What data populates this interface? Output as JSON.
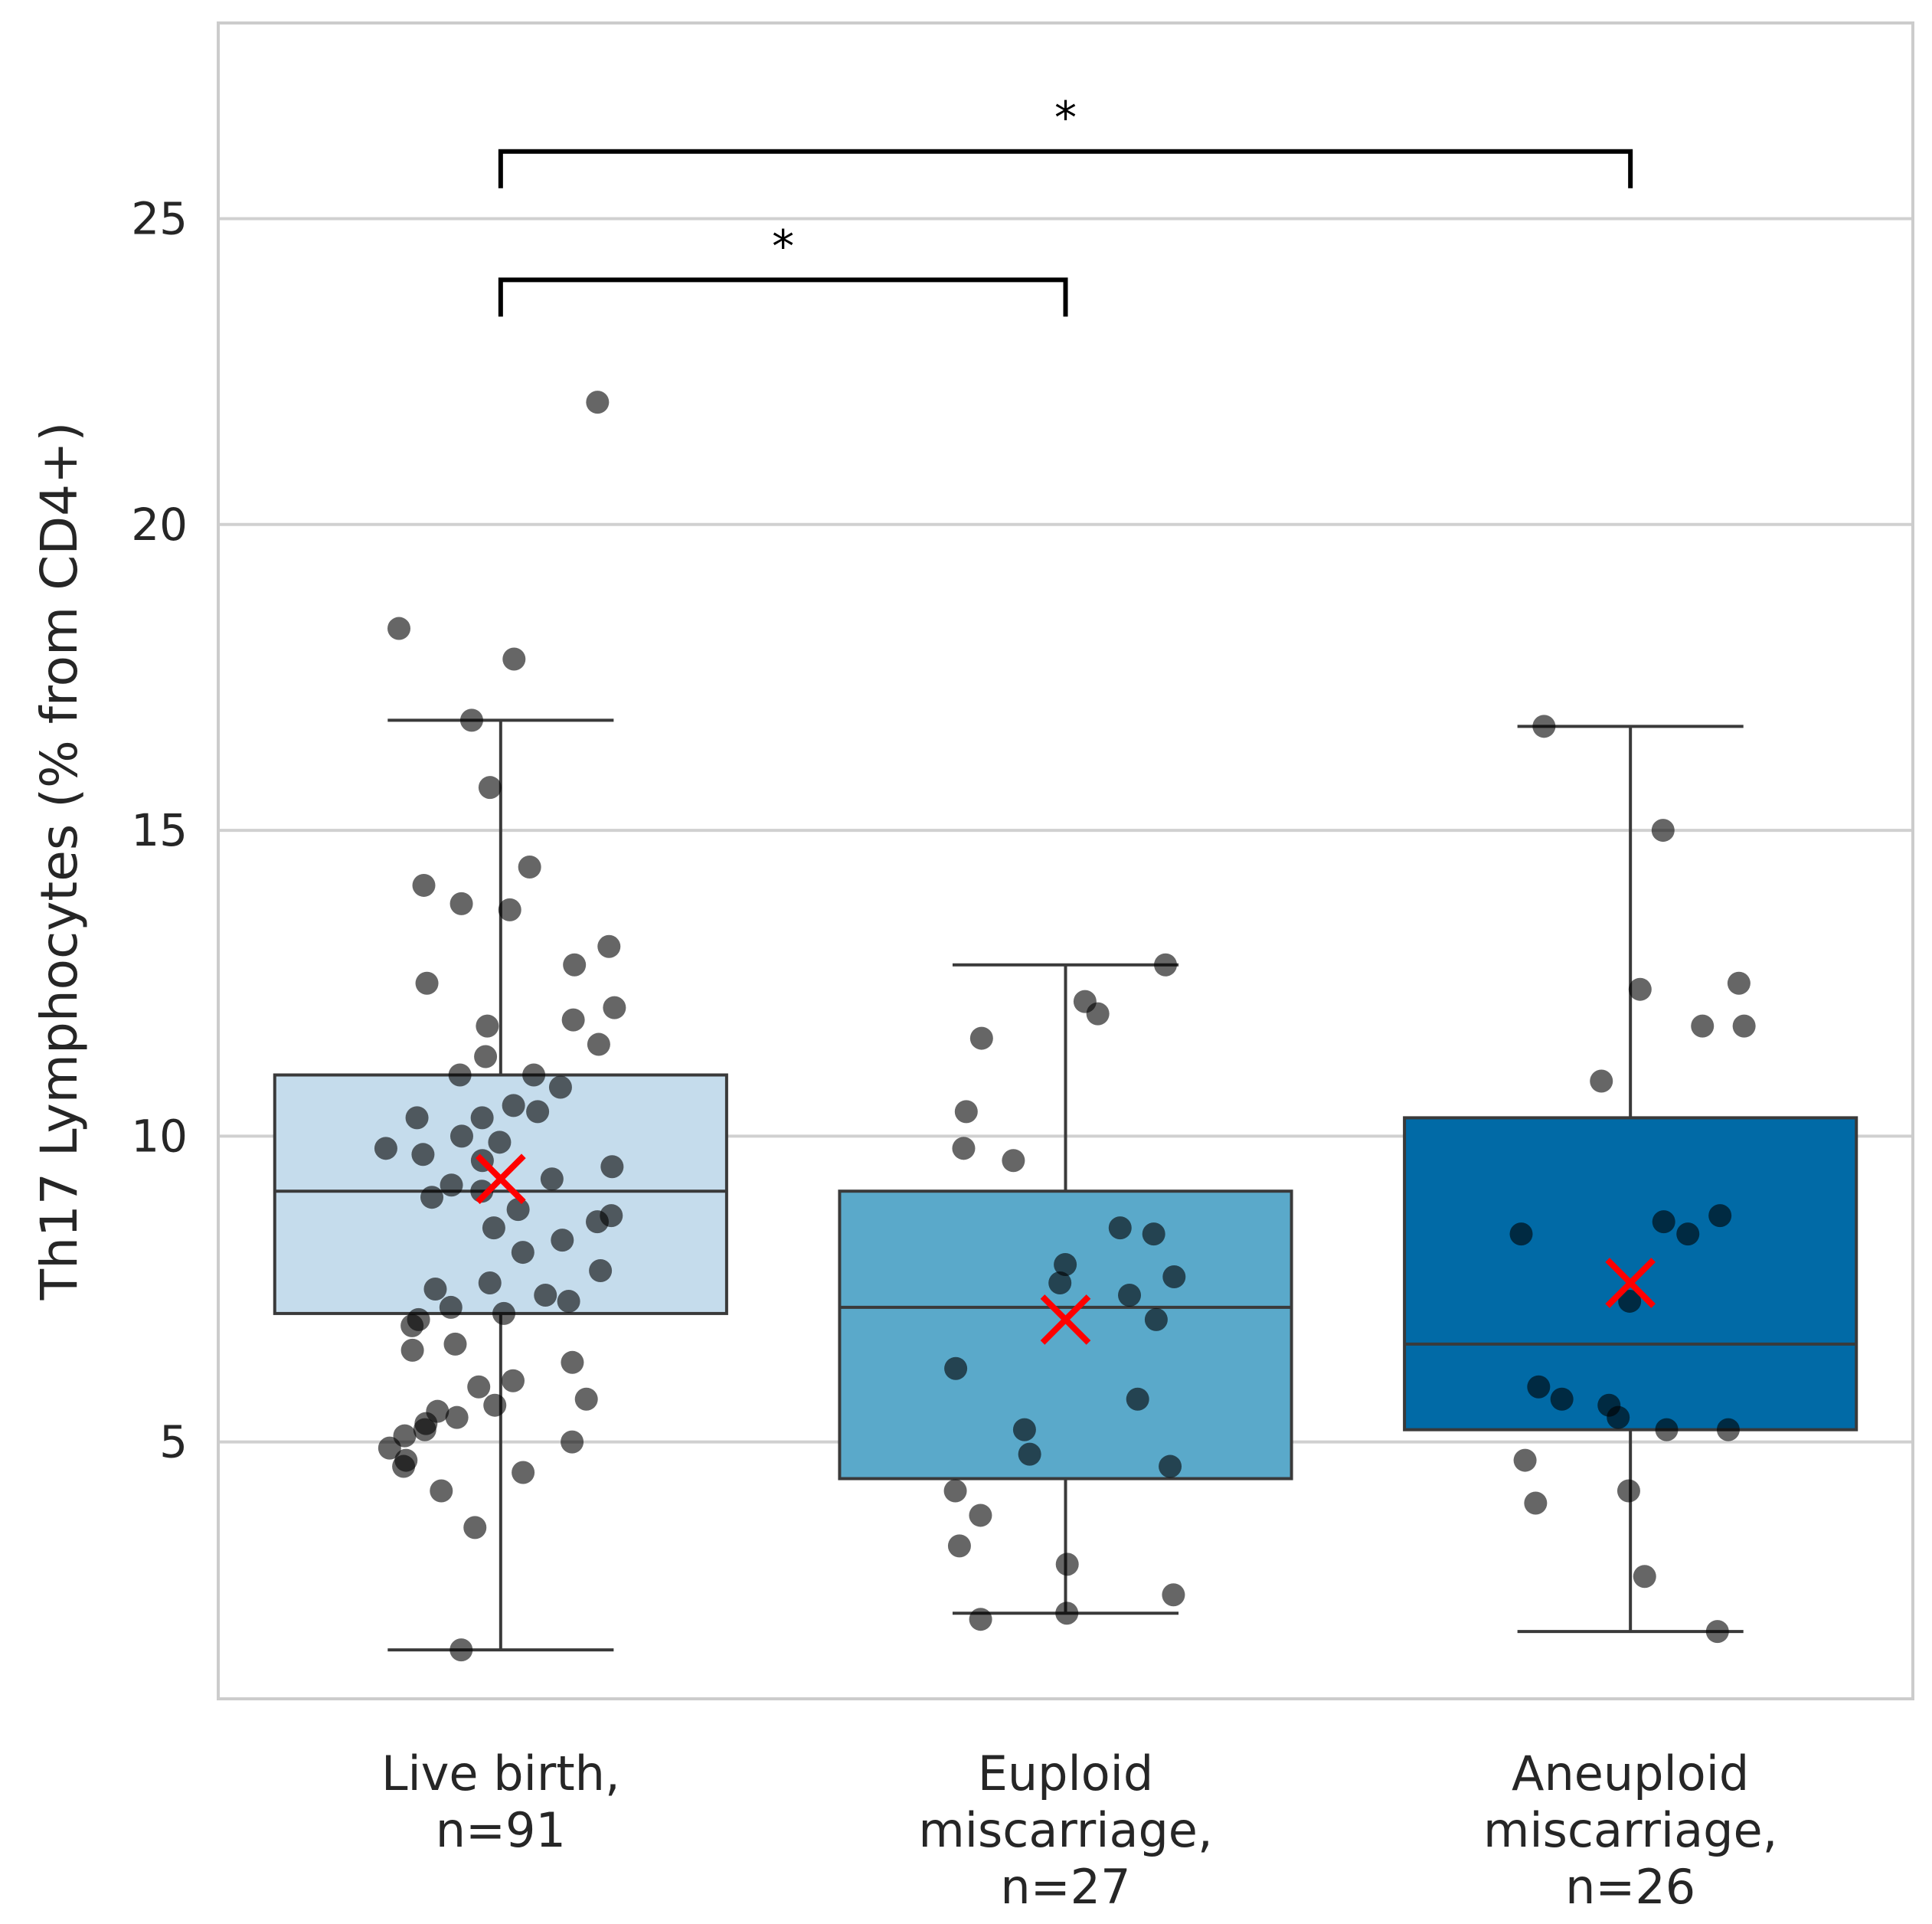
{
  "chart_data": {
    "type": "box",
    "ylabel": "Th17 Lymphocytes (% from CD4+)",
    "ylim": [
      0.8,
      28.2
    ],
    "yticks": [
      5,
      10,
      15,
      20,
      25
    ],
    "grid": true,
    "categories": [
      {
        "label": [
          "Live birth,",
          "n=91"
        ],
        "color": "#c5dcec"
      },
      {
        "label": [
          "Euploid",
          "miscarriage,",
          "n=27"
        ],
        "color": "#5aa9ca"
      },
      {
        "label": [
          "Aneuploid",
          "miscarriage,",
          "n=26"
        ],
        "color": "#016aa6"
      }
    ],
    "boxes": [
      {
        "q1": 7.1,
        "median": 9.1,
        "q3": 11.0,
        "whisker_low": 1.6,
        "whisker_high": 16.8,
        "mean": 9.3
      },
      {
        "q1": 4.4,
        "median": 7.2,
        "q3": 9.1,
        "whisker_low": 2.2,
        "whisker_high": 12.8,
        "mean": 7.0
      },
      {
        "q1": 5.2,
        "median": 6.6,
        "q3": 10.3,
        "whisker_low": 1.9,
        "whisker_high": 16.7,
        "mean": 7.6
      }
    ],
    "points": [
      [
        22.0,
        18.3,
        17.8,
        16.8,
        15.7,
        14.4,
        14.1,
        13.8,
        13.7,
        13.1,
        12.8,
        12.5,
        12.1,
        11.9,
        11.8,
        11.5,
        11.3,
        11.0,
        11.0,
        10.8,
        10.5,
        10.4,
        10.3,
        10.3,
        10.0,
        9.9,
        9.8,
        9.7,
        9.6,
        9.5,
        9.3,
        9.2,
        9.1,
        9.0,
        8.8,
        8.7,
        8.6,
        8.5,
        8.3,
        8.1,
        7.8,
        7.6,
        7.5,
        7.4,
        7.3,
        7.2,
        7.1,
        7.0,
        6.9,
        6.6,
        6.5,
        6.3,
        6.0,
        5.9,
        5.7,
        5.6,
        5.5,
        5.4,
        5.3,
        5.2,
        5.1,
        5.0,
        4.9,
        4.7,
        4.6,
        4.5,
        4.2,
        3.6,
        1.6
      ],
      [
        12.8,
        12.2,
        12.0,
        11.6,
        10.4,
        9.8,
        9.6,
        8.5,
        8.4,
        7.9,
        7.7,
        7.6,
        7.4,
        7.0,
        6.2,
        5.7,
        5.2,
        4.8,
        4.6,
        4.2,
        3.8,
        3.3,
        3.0,
        2.5,
        2.2,
        2.1
      ],
      [
        16.7,
        15.0,
        12.5,
        12.4,
        11.8,
        11.8,
        10.9,
        8.7,
        8.6,
        8.4,
        8.4,
        7.3,
        5.9,
        5.7,
        5.6,
        5.4,
        5.2,
        5.2,
        4.7,
        4.2,
        4.0,
        2.8,
        1.9
      ]
    ],
    "significance": [
      {
        "from": 0,
        "to": 2,
        "y": 26.1,
        "label": "*"
      },
      {
        "from": 0,
        "to": 1,
        "y": 24.0,
        "label": "*"
      }
    ]
  }
}
